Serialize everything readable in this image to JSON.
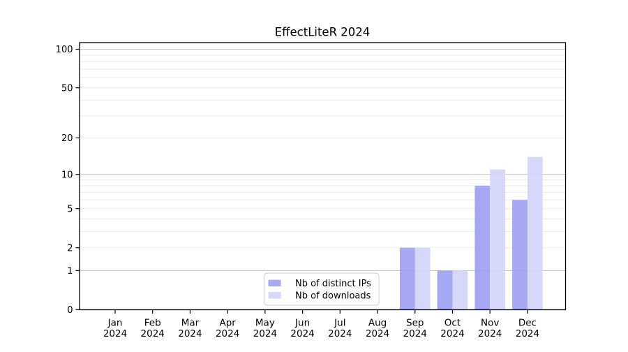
{
  "title": "EffectLiteR 2024",
  "chart_data": {
    "type": "bar",
    "title": "EffectLiteR 2024",
    "categories": [
      "Jan",
      "Feb",
      "Mar",
      "Apr",
      "May",
      "Jun",
      "Jul",
      "Aug",
      "Sep",
      "Oct",
      "Nov",
      "Dec"
    ],
    "year_label": "2024",
    "series": [
      {
        "name": "Nb of distinct IPs",
        "color": "#9a9cf2",
        "values": [
          0,
          0,
          0,
          0,
          0,
          0,
          0,
          0,
          2,
          1,
          8,
          6
        ]
      },
      {
        "name": "Nb of downloads",
        "color": "#d2d3f8",
        "values": [
          0,
          0,
          0,
          0,
          0,
          0,
          0,
          0,
          2,
          1,
          11,
          14
        ]
      }
    ],
    "yscale": "log1p",
    "ylim": [
      0,
      112
    ],
    "yticks": [
      0,
      1,
      2,
      5,
      10,
      20,
      50,
      100
    ],
    "grid": {
      "major": [
        1,
        10,
        100
      ],
      "minor": [
        2,
        3,
        4,
        5,
        6,
        7,
        8,
        9,
        20,
        30,
        40,
        50,
        60,
        70,
        80,
        90
      ],
      "major_color": "#c9c9c9",
      "minor_color": "#ededed"
    },
    "legend": {
      "position": "inside-bottom-center",
      "entries": [
        "Nb of distinct IPs",
        "Nb of downloads"
      ]
    },
    "xlabel": "",
    "ylabel": ""
  }
}
